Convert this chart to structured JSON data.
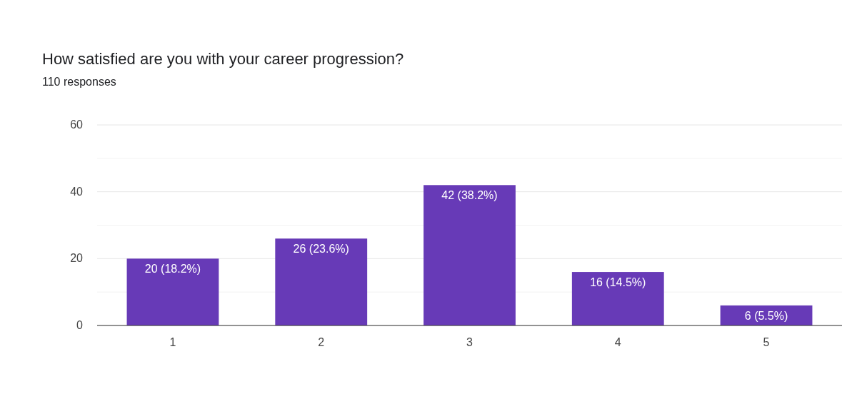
{
  "chart_data": {
    "type": "bar",
    "title": "How satisfied are you with your career progression?",
    "subtitle": "110 responses",
    "categories": [
      "1",
      "2",
      "3",
      "4",
      "5"
    ],
    "values": [
      20,
      26,
      42,
      16,
      6
    ],
    "color": "#673ab7",
    "value_labels": [
      "20 (18.2%)",
      "26 (23.6%)",
      "42 (38.2%)",
      "16 (14.5%)",
      "6 (5.5%)"
    ],
    "ylim": [
      0,
      60
    ],
    "yticks": [
      0,
      {
        "value": 10,
        "label": null
      },
      20,
      {
        "value": 30,
        "label": null
      },
      40,
      {
        "value": 50,
        "label": null
      },
      60
    ],
    "grid": true
  }
}
